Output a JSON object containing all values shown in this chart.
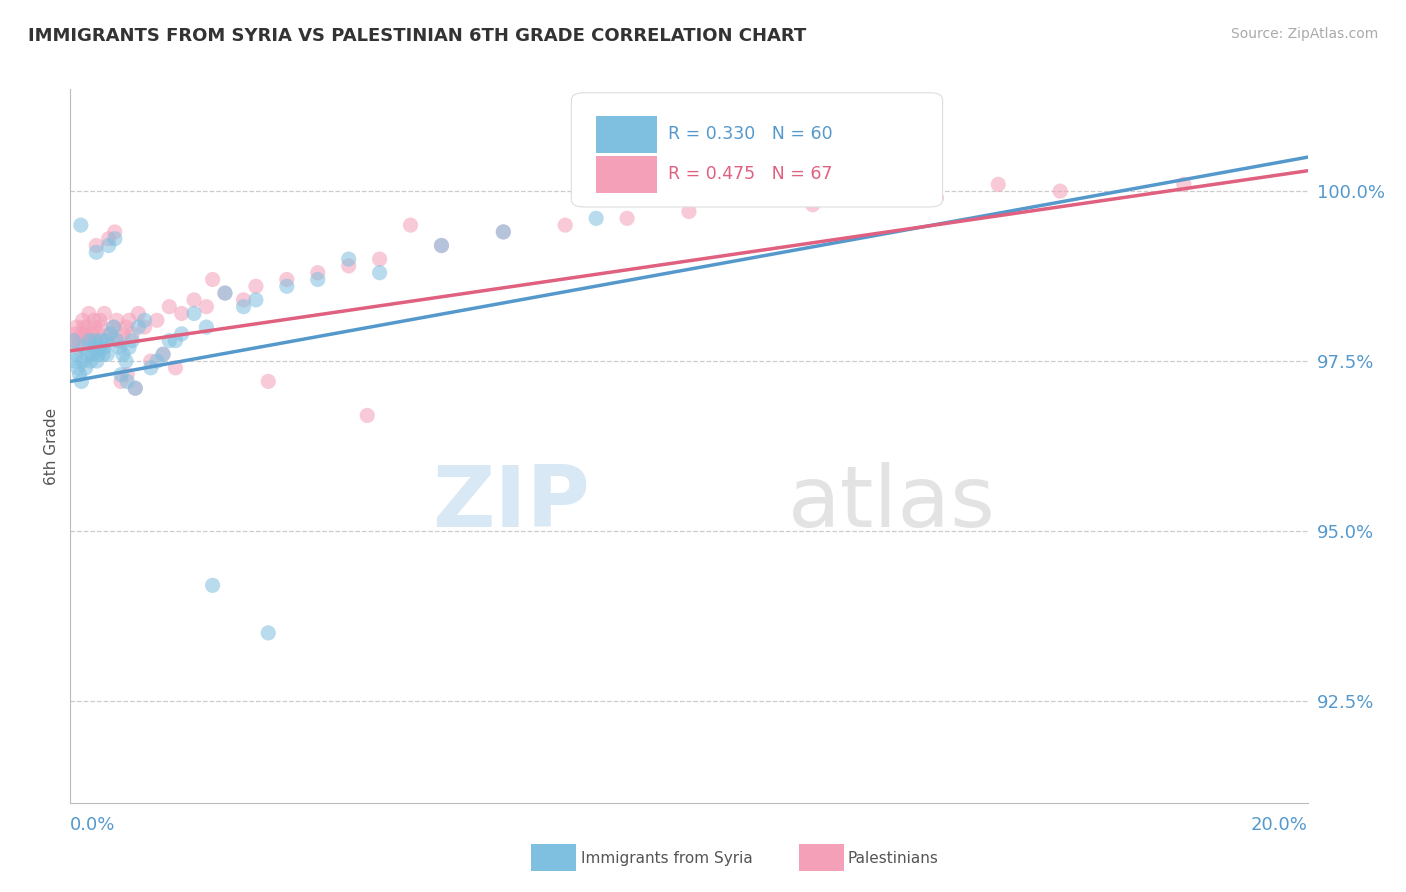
{
  "title": "IMMIGRANTS FROM SYRIA VS PALESTINIAN 6TH GRADE CORRELATION CHART",
  "source": "Source: ZipAtlas.com",
  "ylabel": "6th Grade",
  "xlim": [
    0.0,
    20.0
  ],
  "ylim": [
    91.0,
    101.5
  ],
  "yticks": [
    92.5,
    95.0,
    97.5,
    100.0
  ],
  "ytick_labels": [
    "92.5%",
    "95.0%",
    "97.5%",
    "100.0%"
  ],
  "legend_blue_label": "Immigrants from Syria",
  "legend_pink_label": "Palestinians",
  "R_blue": 0.33,
  "N_blue": 60,
  "R_pink": 0.475,
  "N_pink": 67,
  "blue_color": "#7fbfdf",
  "pink_color": "#f4a0b8",
  "blue_line_color": "#5599cc",
  "pink_line_color": "#e06080",
  "watermark_zip": "ZIP",
  "watermark_atlas": "atlas",
  "background_color": "#ffffff",
  "scatter_alpha": 0.55,
  "scatter_size": 120,
  "syria_x": [
    0.05,
    0.08,
    0.1,
    0.12,
    0.15,
    0.18,
    0.2,
    0.22,
    0.25,
    0.28,
    0.3,
    0.33,
    0.35,
    0.38,
    0.4,
    0.43,
    0.45,
    0.48,
    0.5,
    0.53,
    0.55,
    0.58,
    0.6,
    0.65,
    0.7,
    0.75,
    0.8,
    0.85,
    0.9,
    0.95,
    1.0,
    1.1,
    1.2,
    1.4,
    1.6,
    1.8,
    2.0,
    2.2,
    2.5,
    2.8,
    3.0,
    3.5,
    4.0,
    4.5,
    5.0,
    6.0,
    7.0,
    8.5,
    1.5,
    1.7,
    0.42,
    0.62,
    0.72,
    0.82,
    0.92,
    1.05,
    1.3,
    0.17,
    2.3,
    3.2
  ],
  "syria_y": [
    97.8,
    97.5,
    97.6,
    97.4,
    97.3,
    97.2,
    97.5,
    97.7,
    97.4,
    97.6,
    97.8,
    97.5,
    97.6,
    97.7,
    97.8,
    97.5,
    97.6,
    97.7,
    97.8,
    97.6,
    97.7,
    97.8,
    97.6,
    97.9,
    98.0,
    97.8,
    97.7,
    97.6,
    97.5,
    97.7,
    97.8,
    98.0,
    98.1,
    97.5,
    97.8,
    97.9,
    98.2,
    98.0,
    98.5,
    98.3,
    98.4,
    98.6,
    98.7,
    99.0,
    98.8,
    99.2,
    99.4,
    99.6,
    97.6,
    97.8,
    99.1,
    99.2,
    99.3,
    97.3,
    97.2,
    97.1,
    97.4,
    99.5,
    94.2,
    93.5
  ],
  "palest_x": [
    0.05,
    0.08,
    0.1,
    0.12,
    0.15,
    0.18,
    0.2,
    0.22,
    0.25,
    0.28,
    0.3,
    0.33,
    0.35,
    0.38,
    0.4,
    0.43,
    0.45,
    0.48,
    0.5,
    0.55,
    0.6,
    0.65,
    0.7,
    0.75,
    0.8,
    0.85,
    0.9,
    0.95,
    1.0,
    1.1,
    1.2,
    1.4,
    1.6,
    1.8,
    2.0,
    2.2,
    2.5,
    2.8,
    3.0,
    3.5,
    4.0,
    4.5,
    5.0,
    6.0,
    7.0,
    8.0,
    9.0,
    10.0,
    12.0,
    14.0,
    16.0,
    18.0,
    0.42,
    0.62,
    0.72,
    0.82,
    0.92,
    1.05,
    1.3,
    1.5,
    1.7,
    2.3,
    3.2,
    4.8,
    5.5,
    11.0,
    15.0
  ],
  "palest_y": [
    97.8,
    97.9,
    98.0,
    97.7,
    97.8,
    97.9,
    98.1,
    98.0,
    97.9,
    98.0,
    98.2,
    97.8,
    97.9,
    98.1,
    98.0,
    97.8,
    97.9,
    98.1,
    98.0,
    98.2,
    97.8,
    97.9,
    98.0,
    98.1,
    97.8,
    97.9,
    98.0,
    98.1,
    97.9,
    98.2,
    98.0,
    98.1,
    98.3,
    98.2,
    98.4,
    98.3,
    98.5,
    98.4,
    98.6,
    98.7,
    98.8,
    98.9,
    99.0,
    99.2,
    99.4,
    99.5,
    99.6,
    99.7,
    99.8,
    99.9,
    100.0,
    100.1,
    99.2,
    99.3,
    99.4,
    97.2,
    97.3,
    97.1,
    97.5,
    97.6,
    97.4,
    98.7,
    97.2,
    96.7,
    99.5,
    99.9,
    100.1
  ]
}
